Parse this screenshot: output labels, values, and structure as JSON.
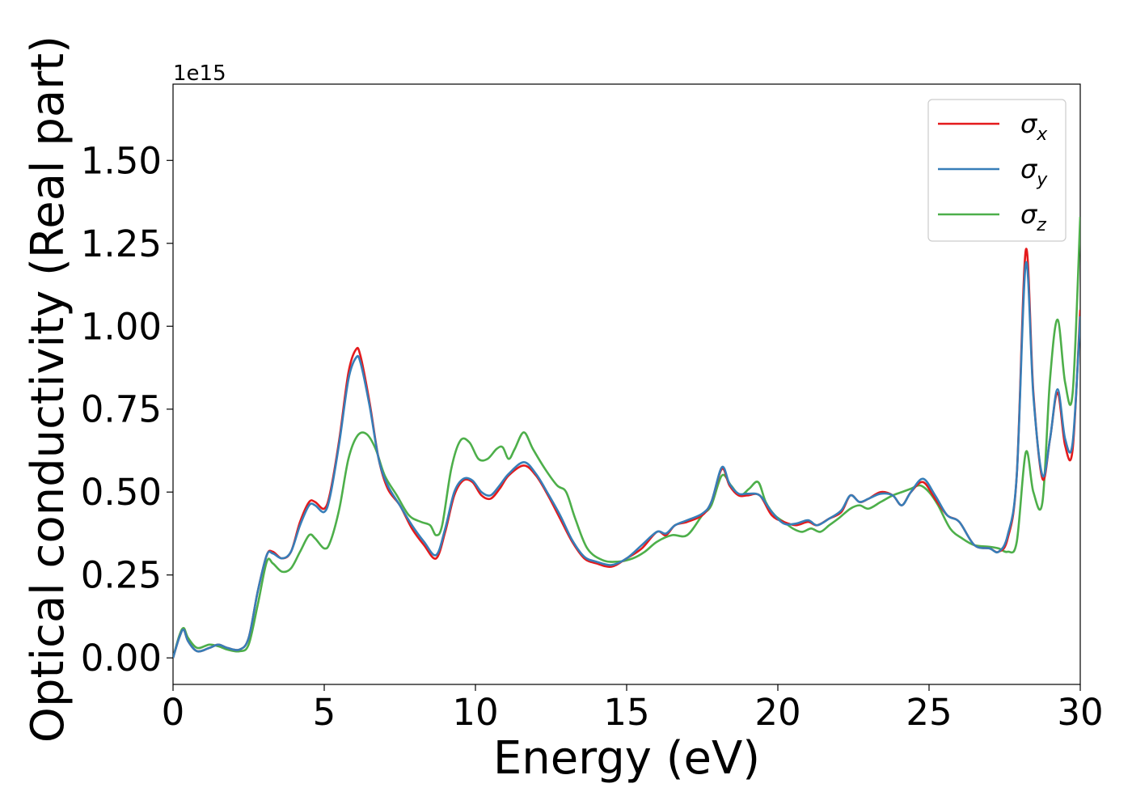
{
  "chart_data": {
    "type": "line",
    "title": "",
    "xlabel": "Energy (eV)",
    "ylabel": "Optical conductivity (Real part)",
    "y_offset_label": "1e15",
    "xlim": [
      0,
      30
    ],
    "ylim": [
      -0.08,
      1.73
    ],
    "xticks": [
      0,
      5,
      10,
      15,
      20,
      25,
      30
    ],
    "xtick_labels": [
      "0",
      "5",
      "10",
      "15",
      "20",
      "25",
      "30"
    ],
    "yticks": [
      0.0,
      0.25,
      0.5,
      0.75,
      1.0,
      1.25,
      1.5
    ],
    "ytick_labels": [
      "0.00",
      "0.25",
      "0.50",
      "0.75",
      "1.00",
      "1.25",
      "1.50"
    ],
    "grid": false,
    "legend_position": "upper-right",
    "series": [
      {
        "name": "σx",
        "legend_symbol": "σ",
        "legend_sub": "x",
        "color": "#e41a1c",
        "x": [
          0,
          0.2,
          0.35,
          0.5,
          0.8,
          1.2,
          1.5,
          1.8,
          2.2,
          2.5,
          2.8,
          3.1,
          3.3,
          3.6,
          3.9,
          4.2,
          4.5,
          4.7,
          5.0,
          5.2,
          5.5,
          5.8,
          6.05,
          6.2,
          6.5,
          6.8,
          7.1,
          7.5,
          7.9,
          8.3,
          8.7,
          9.0,
          9.3,
          9.6,
          9.9,
          10.2,
          10.5,
          10.8,
          11.1,
          11.6,
          12.0,
          12.4,
          12.8,
          13.2,
          13.6,
          14.0,
          14.5,
          15.0,
          15.5,
          16.0,
          16.3,
          16.6,
          17.0,
          17.5,
          17.8,
          18.15,
          18.4,
          18.7,
          19.0,
          19.4,
          19.8,
          20.2,
          20.6,
          21.0,
          21.3,
          21.7,
          22.1,
          22.4,
          22.7,
          23.0,
          23.4,
          23.8,
          24.1,
          24.4,
          24.8,
          25.2,
          25.6,
          26.0,
          26.5,
          27.0,
          27.3,
          27.6,
          27.9,
          28.2,
          28.45,
          28.75,
          29.0,
          29.25,
          29.5,
          29.75,
          30.0
        ],
        "y": [
          0.0,
          0.06,
          0.085,
          0.05,
          0.02,
          0.03,
          0.04,
          0.03,
          0.025,
          0.06,
          0.2,
          0.31,
          0.32,
          0.3,
          0.32,
          0.41,
          0.47,
          0.47,
          0.45,
          0.5,
          0.66,
          0.86,
          0.93,
          0.91,
          0.77,
          0.6,
          0.51,
          0.46,
          0.39,
          0.34,
          0.3,
          0.38,
          0.49,
          0.535,
          0.53,
          0.49,
          0.48,
          0.51,
          0.55,
          0.58,
          0.55,
          0.49,
          0.42,
          0.35,
          0.3,
          0.285,
          0.275,
          0.3,
          0.33,
          0.38,
          0.37,
          0.4,
          0.41,
          0.43,
          0.47,
          0.57,
          0.52,
          0.49,
          0.49,
          0.49,
          0.43,
          0.41,
          0.4,
          0.41,
          0.4,
          0.42,
          0.44,
          0.49,
          0.47,
          0.48,
          0.5,
          0.49,
          0.46,
          0.5,
          0.53,
          0.48,
          0.43,
          0.41,
          0.34,
          0.33,
          0.32,
          0.36,
          0.55,
          1.23,
          0.8,
          0.54,
          0.66,
          0.8,
          0.64,
          0.63,
          1.05
        ]
      },
      {
        "name": "σy",
        "legend_symbol": "σ",
        "legend_sub": "y",
        "color": "#377eb8",
        "x": [
          0,
          0.2,
          0.35,
          0.5,
          0.8,
          1.2,
          1.5,
          1.8,
          2.2,
          2.5,
          2.8,
          3.1,
          3.3,
          3.6,
          3.9,
          4.2,
          4.5,
          4.7,
          5.0,
          5.2,
          5.5,
          5.8,
          6.05,
          6.2,
          6.5,
          6.8,
          7.1,
          7.5,
          7.9,
          8.3,
          8.7,
          9.0,
          9.3,
          9.6,
          9.9,
          10.2,
          10.5,
          10.8,
          11.1,
          11.6,
          12.0,
          12.4,
          12.8,
          13.2,
          13.6,
          14.0,
          14.5,
          15.0,
          15.5,
          16.0,
          16.3,
          16.6,
          17.0,
          17.5,
          17.8,
          18.15,
          18.4,
          18.7,
          19.0,
          19.4,
          19.8,
          20.2,
          20.6,
          21.0,
          21.3,
          21.7,
          22.1,
          22.4,
          22.7,
          23.0,
          23.4,
          23.8,
          24.1,
          24.4,
          24.8,
          25.2,
          25.6,
          26.0,
          26.5,
          27.0,
          27.3,
          27.6,
          27.9,
          28.2,
          28.45,
          28.75,
          29.0,
          29.25,
          29.5,
          29.75,
          30.0
        ],
        "y": [
          0.0,
          0.06,
          0.085,
          0.05,
          0.02,
          0.03,
          0.04,
          0.03,
          0.025,
          0.06,
          0.2,
          0.31,
          0.315,
          0.3,
          0.32,
          0.4,
          0.46,
          0.46,
          0.44,
          0.49,
          0.65,
          0.84,
          0.905,
          0.89,
          0.76,
          0.6,
          0.52,
          0.46,
          0.4,
          0.35,
          0.31,
          0.39,
          0.5,
          0.54,
          0.535,
          0.5,
          0.49,
          0.52,
          0.555,
          0.59,
          0.555,
          0.495,
          0.43,
          0.355,
          0.305,
          0.29,
          0.28,
          0.3,
          0.34,
          0.38,
          0.375,
          0.4,
          0.415,
          0.435,
          0.47,
          0.575,
          0.525,
          0.495,
          0.495,
          0.49,
          0.44,
          0.405,
          0.405,
          0.415,
          0.4,
          0.42,
          0.445,
          0.49,
          0.47,
          0.48,
          0.495,
          0.49,
          0.46,
          0.5,
          0.54,
          0.49,
          0.43,
          0.41,
          0.34,
          0.33,
          0.32,
          0.37,
          0.55,
          1.19,
          0.79,
          0.55,
          0.66,
          0.81,
          0.66,
          0.65,
          1.03
        ]
      },
      {
        "name": "σz",
        "legend_symbol": "σ",
        "legend_sub": "z",
        "color": "#4daf4a",
        "x": [
          0,
          0.2,
          0.35,
          0.5,
          0.8,
          1.2,
          1.5,
          1.8,
          2.2,
          2.5,
          2.8,
          3.1,
          3.3,
          3.6,
          3.9,
          4.2,
          4.5,
          4.7,
          5.0,
          5.2,
          5.5,
          5.8,
          6.1,
          6.4,
          6.7,
          7.0,
          7.4,
          7.8,
          8.2,
          8.5,
          8.7,
          8.9,
          9.2,
          9.5,
          9.8,
          10.1,
          10.4,
          10.7,
          10.9,
          11.1,
          11.3,
          11.6,
          11.9,
          12.3,
          12.7,
          13.0,
          13.3,
          13.7,
          14.2,
          14.7,
          15.2,
          15.6,
          16.0,
          16.5,
          17.0,
          17.5,
          17.8,
          18.15,
          18.45,
          18.75,
          19.05,
          19.35,
          19.6,
          19.9,
          20.2,
          20.5,
          20.8,
          21.1,
          21.4,
          21.7,
          22.0,
          22.4,
          22.7,
          23.0,
          23.4,
          23.8,
          24.1,
          24.4,
          24.7,
          25.0,
          25.3,
          25.7,
          26.1,
          26.5,
          27.0,
          27.3,
          27.6,
          27.9,
          28.2,
          28.45,
          28.75,
          29.0,
          29.25,
          29.5,
          29.75,
          30.0
        ],
        "y": [
          0.0,
          0.065,
          0.09,
          0.06,
          0.03,
          0.04,
          0.035,
          0.025,
          0.02,
          0.04,
          0.16,
          0.29,
          0.285,
          0.26,
          0.27,
          0.32,
          0.37,
          0.36,
          0.33,
          0.35,
          0.45,
          0.6,
          0.67,
          0.675,
          0.63,
          0.55,
          0.49,
          0.43,
          0.41,
          0.4,
          0.37,
          0.4,
          0.57,
          0.655,
          0.65,
          0.6,
          0.6,
          0.63,
          0.635,
          0.6,
          0.63,
          0.68,
          0.63,
          0.57,
          0.52,
          0.5,
          0.42,
          0.33,
          0.295,
          0.29,
          0.3,
          0.32,
          0.35,
          0.37,
          0.37,
          0.43,
          0.46,
          0.55,
          0.52,
          0.49,
          0.51,
          0.53,
          0.47,
          0.43,
          0.41,
          0.39,
          0.38,
          0.39,
          0.38,
          0.4,
          0.42,
          0.45,
          0.46,
          0.45,
          0.47,
          0.49,
          0.5,
          0.51,
          0.52,
          0.5,
          0.46,
          0.39,
          0.36,
          0.34,
          0.335,
          0.33,
          0.32,
          0.35,
          0.62,
          0.5,
          0.47,
          0.84,
          1.02,
          0.83,
          0.8,
          1.33
        ]
      }
    ]
  }
}
